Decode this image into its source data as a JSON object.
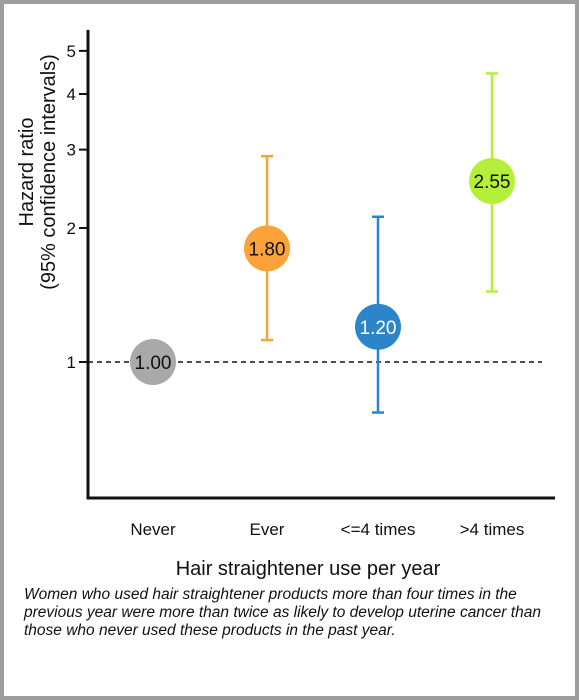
{
  "chart_data": {
    "type": "scatter",
    "title": "",
    "xlabel": "Hair straightener use per year",
    "ylabel_line1": "Hazard ratio",
    "ylabel_line2": "(95% confidence intervals)",
    "y_scale": "log",
    "ylim": [
      0.5,
      5.5
    ],
    "y_ticks": [
      1,
      2,
      3,
      4,
      5
    ],
    "reference_line": 1,
    "categories": [
      "Never",
      "Ever",
      "<=4 times",
      ">4 times"
    ],
    "points": [
      {
        "category": "Never",
        "value": 1.0,
        "label": "1.00",
        "lower": null,
        "upper": null,
        "color": "#a9a9a9"
      },
      {
        "category": "Ever",
        "value": 1.8,
        "label": "1.80",
        "lower": 1.12,
        "upper": 2.9,
        "color": "#f9a33a"
      },
      {
        "category": "<=4 times",
        "value": 1.2,
        "label": "1.20",
        "lower": 0.77,
        "upper": 2.12,
        "color": "#2c84c9"
      },
      {
        "category": ">4 times",
        "value": 2.55,
        "label": "2.55",
        "lower": 1.44,
        "upper": 4.45,
        "color": "#b4f03a"
      }
    ]
  },
  "caption": "Women who used hair straightener products more than four times in the previous year were more than twice as likely to develop uterine cancer than those who never used these products in the past year."
}
